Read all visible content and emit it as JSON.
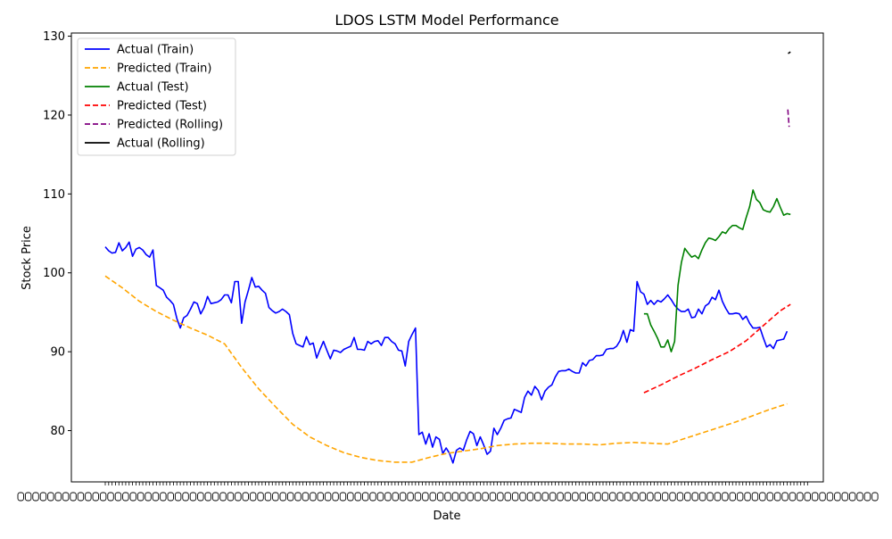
{
  "chart_data": {
    "type": "line",
    "title": "LDOS LSTM Model Performance",
    "xlabel": "Date",
    "ylabel": "Stock Price",
    "ylim": [
      73.5,
      130.4
    ],
    "yticks": [
      80,
      90,
      100,
      110,
      120,
      130
    ],
    "x_tick_labels_legible": false,
    "grid": false,
    "legend_position": "top-left",
    "series": [
      {
        "name": "Actual (Train)",
        "color": "#0000ff",
        "style": "solid",
        "x": [
          0,
          1,
          2,
          3,
          4,
          5,
          6,
          7,
          8,
          9,
          10,
          11,
          12,
          13,
          14,
          15,
          16,
          17,
          18,
          19,
          20,
          21,
          22,
          23,
          24,
          25,
          26,
          27,
          28,
          29,
          30,
          31,
          32,
          33,
          34,
          35,
          36,
          37,
          38,
          39,
          40,
          41,
          42,
          43,
          44,
          45,
          46,
          47,
          48,
          49,
          50,
          51,
          52,
          53,
          54,
          55,
          56,
          57,
          58,
          59,
          60,
          61,
          62,
          63,
          64,
          65,
          66,
          67,
          68,
          69,
          70,
          71,
          72,
          73,
          74,
          75,
          76,
          77,
          78,
          79,
          80,
          81,
          82,
          83,
          84,
          85,
          86,
          87,
          88,
          89,
          90,
          91,
          92,
          93,
          94,
          95,
          96,
          97,
          98,
          99,
          100,
          101,
          102,
          103,
          104,
          105,
          106,
          107,
          108,
          109,
          110,
          111,
          112,
          113,
          114,
          115,
          116,
          117,
          118,
          119,
          120,
          121,
          122,
          123,
          124,
          125,
          126,
          127,
          128,
          129,
          130,
          131,
          132,
          133,
          134,
          135,
          136,
          137,
          138,
          139,
          140,
          141,
          142,
          143,
          144,
          145,
          146,
          147,
          148,
          149,
          150,
          151,
          152,
          153,
          154,
          155,
          156,
          157,
          158,
          159,
          160,
          161,
          162,
          163,
          164,
          165,
          166,
          167,
          168,
          169,
          170,
          171,
          172,
          173,
          174,
          175,
          176,
          177,
          178,
          179,
          180,
          181,
          182,
          183,
          184,
          185,
          186,
          187,
          188,
          189,
          190,
          191,
          192,
          193,
          194,
          195,
          196,
          197,
          198,
          199,
          200
        ],
        "values": [
          103.3,
          102.8,
          102.5,
          102.6,
          103.8,
          102.8,
          103.2,
          103.9,
          102.1,
          103.0,
          103.2,
          102.9,
          102.3,
          102.0,
          102.9,
          98.4,
          98.1,
          97.8,
          96.9,
          96.5,
          96.0,
          94.2,
          93.0,
          94.3,
          94.6,
          95.4,
          96.3,
          96.1,
          94.8,
          95.6,
          97.0,
          96.1,
          96.2,
          96.3,
          96.6,
          97.2,
          97.2,
          96.2,
          98.9,
          98.9,
          93.6,
          96.3,
          97.8,
          99.4,
          98.2,
          98.3,
          97.8,
          97.4,
          95.6,
          95.2,
          94.9,
          95.1,
          95.4,
          95.1,
          94.7,
          92.3,
          91.0,
          90.8,
          90.6,
          91.9,
          90.9,
          91.1,
          89.2,
          90.3,
          91.3,
          90.2,
          89.1,
          90.2,
          90.1,
          89.9,
          90.3,
          90.5,
          90.7,
          91.8,
          90.3,
          90.3,
          90.2,
          91.3,
          91.0,
          91.3,
          91.4,
          90.8,
          91.8,
          91.8,
          91.3,
          91.0,
          90.2,
          90.1,
          88.2,
          91.3,
          92.2,
          93.0,
          79.5,
          79.8,
          78.3,
          79.6,
          77.9,
          79.2,
          78.9,
          77.1,
          77.8,
          77.1,
          75.9,
          77.5,
          77.8,
          77.5,
          78.8,
          79.9,
          79.6,
          78.1,
          79.2,
          78.2,
          77.0,
          77.4,
          80.3,
          79.5,
          80.3,
          81.3,
          81.5,
          81.6,
          82.7,
          82.5,
          82.3,
          84.2,
          85.0,
          84.5,
          85.6,
          85.1,
          83.9,
          85.0,
          85.5,
          85.8,
          86.8,
          87.5,
          87.6,
          87.6,
          87.8,
          87.5,
          87.3,
          87.3,
          88.6,
          88.2,
          88.9,
          89.0,
          89.5,
          89.5,
          89.6,
          90.3,
          90.4,
          90.4,
          90.7,
          91.4,
          92.7,
          91.2,
          92.8,
          92.6,
          98.9,
          97.6,
          97.3,
          96.0,
          96.5,
          96.0,
          96.5,
          96.3,
          96.7,
          97.2,
          96.6,
          95.9,
          95.4,
          95.1,
          95.1,
          95.4,
          94.3,
          94.4,
          95.4,
          94.8,
          95.8,
          96.1,
          96.9,
          96.6,
          97.8,
          96.4,
          95.5,
          94.8,
          94.8,
          94.9,
          94.8,
          94.1,
          94.5,
          93.6,
          93.0,
          93.0,
          93.1,
          91.8,
          90.6,
          90.9,
          90.4,
          91.4,
          91.5,
          91.6,
          92.6
        ]
      },
      {
        "name": "Predicted (Train)",
        "color": "#ffa500",
        "style": "dashed",
        "x": [
          0,
          5,
          10,
          15,
          20,
          25,
          30,
          35,
          40,
          45,
          50,
          55,
          60,
          65,
          70,
          75,
          80,
          85,
          90,
          95,
          100,
          105,
          110,
          115,
          120,
          125,
          130,
          135,
          140,
          145,
          150,
          155,
          160,
          165,
          170,
          175,
          180,
          185,
          190,
          195,
          200
        ],
        "values": [
          99.6,
          98.1,
          96.4,
          95.1,
          94.0,
          93.0,
          92.1,
          91.0,
          88.0,
          85.3,
          83.0,
          80.8,
          79.2,
          78.1,
          77.2,
          76.6,
          76.2,
          76.0,
          76.0,
          76.6,
          77.1,
          77.4,
          77.7,
          78.1,
          78.3,
          78.4,
          78.4,
          78.3,
          78.3,
          78.2,
          78.4,
          78.5,
          78.4,
          78.3,
          79.0,
          79.7,
          80.4,
          81.1,
          81.9,
          82.7,
          83.4
        ]
      },
      {
        "name": "Actual (Test)",
        "color": "#008000",
        "style": "solid",
        "x": [
          158,
          159,
          160,
          161,
          162,
          163,
          164,
          165,
          166,
          167,
          168,
          169,
          170,
          171,
          172,
          173,
          174,
          175,
          176,
          177,
          178,
          179,
          180,
          181,
          182,
          183,
          184,
          185,
          186,
          187,
          188,
          189,
          190,
          191,
          192,
          193,
          194,
          195,
          196,
          197,
          198,
          199,
          200,
          201
        ],
        "values": [
          94.8,
          94.8,
          93.4,
          92.6,
          91.7,
          90.6,
          90.6,
          91.5,
          90.0,
          91.3,
          98.4,
          101.3,
          103.1,
          102.5,
          102.0,
          102.2,
          101.8,
          102.9,
          103.8,
          104.4,
          104.3,
          104.1,
          104.6,
          105.2,
          105.0,
          105.6,
          106.0,
          106.0,
          105.7,
          105.5,
          107.0,
          108.4,
          110.5,
          109.3,
          108.9,
          108.0,
          107.8,
          107.7,
          108.4,
          109.4,
          108.3,
          107.3,
          107.5,
          107.4
        ]
      },
      {
        "name": "Predicted (Test)",
        "color": "#ff0000",
        "style": "dashed",
        "x": [
          158,
          163,
          168,
          173,
          178,
          183,
          188,
          193,
          198,
          201
        ],
        "values": [
          84.8,
          85.8,
          86.9,
          87.9,
          89.0,
          90.0,
          91.4,
          93.3,
          95.2,
          96.0
        ]
      },
      {
        "name": "Predicted (Rolling)",
        "color": "#800080",
        "style": "dashed",
        "x": [
          200.2,
          200.6
        ],
        "values": [
          120.7,
          118.5
        ]
      },
      {
        "name": "Actual (Rolling)",
        "color": "#000000",
        "style": "solid",
        "x": [
          200.3,
          201.0
        ],
        "values": [
          127.8,
          128.0
        ]
      }
    ],
    "test_tail": [
      105.6,
      106.6,
      107.5,
      107.6,
      107.6,
      107.9
    ],
    "x_extent": [
      0,
      206
    ]
  }
}
